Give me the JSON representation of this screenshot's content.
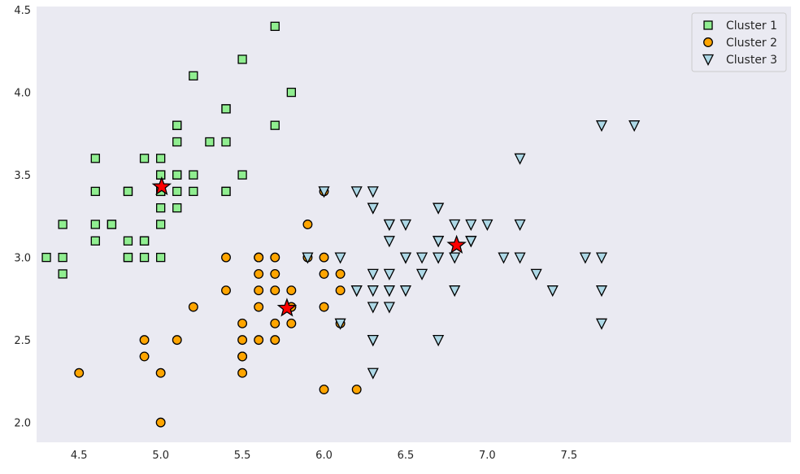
{
  "chart_data": {
    "type": "scatter",
    "xlim": [
      4.24,
      8.86
    ],
    "ylim": [
      1.88,
      4.52
    ],
    "grid": false,
    "background": "#eaeaf2",
    "legend_position": "top-right",
    "x_ticks": [
      4.5,
      5.0,
      5.5,
      6.0,
      6.5,
      7.0,
      7.5
    ],
    "y_ticks": [
      2.0,
      2.5,
      3.0,
      3.5,
      4.0,
      4.5
    ],
    "series": [
      {
        "name": "Cluster 1",
        "marker": "square",
        "color": "#90ee90",
        "points": [
          [
            5.1,
            3.5
          ],
          [
            4.9,
            3.0
          ],
          [
            4.7,
            3.2
          ],
          [
            4.6,
            3.1
          ],
          [
            5.0,
            3.6
          ],
          [
            5.4,
            3.9
          ],
          [
            4.6,
            3.4
          ],
          [
            5.0,
            3.4
          ],
          [
            4.4,
            2.9
          ],
          [
            4.9,
            3.1
          ],
          [
            5.4,
            3.7
          ],
          [
            4.8,
            3.4
          ],
          [
            4.8,
            3.0
          ],
          [
            4.3,
            3.0
          ],
          [
            5.8,
            4.0
          ],
          [
            5.7,
            4.4
          ],
          [
            5.4,
            3.9
          ],
          [
            5.1,
            3.5
          ],
          [
            5.7,
            3.8
          ],
          [
            5.1,
            3.8
          ],
          [
            5.4,
            3.4
          ],
          [
            5.1,
            3.7
          ],
          [
            4.6,
            3.6
          ],
          [
            5.1,
            3.3
          ],
          [
            4.8,
            3.4
          ],
          [
            5.0,
            3.0
          ],
          [
            5.0,
            3.4
          ],
          [
            5.2,
            3.5
          ],
          [
            5.2,
            3.4
          ],
          [
            4.7,
            3.2
          ],
          [
            4.8,
            3.1
          ],
          [
            5.4,
            3.4
          ],
          [
            5.2,
            4.1
          ],
          [
            5.5,
            4.2
          ],
          [
            4.9,
            3.1
          ],
          [
            5.0,
            3.2
          ],
          [
            5.5,
            3.5
          ],
          [
            4.9,
            3.6
          ],
          [
            4.4,
            3.0
          ],
          [
            5.1,
            3.4
          ],
          [
            5.0,
            3.5
          ],
          [
            4.4,
            3.2
          ],
          [
            5.0,
            3.5
          ],
          [
            5.1,
            3.8
          ],
          [
            4.8,
            3.0
          ],
          [
            5.1,
            3.8
          ],
          [
            4.6,
            3.2
          ],
          [
            5.3,
            3.7
          ],
          [
            5.0,
            3.3
          ]
        ]
      },
      {
        "name": "Cluster 2",
        "marker": "circle",
        "color": "#ffa500",
        "points": [
          [
            4.5,
            2.3
          ],
          [
            5.0,
            2.0
          ],
          [
            4.9,
            2.4
          ],
          [
            4.9,
            2.5
          ],
          [
            5.0,
            2.3
          ],
          [
            5.1,
            2.5
          ],
          [
            5.2,
            2.7
          ],
          [
            5.4,
            3.0
          ],
          [
            5.5,
            2.3
          ],
          [
            5.5,
            2.4
          ],
          [
            5.6,
            2.5
          ],
          [
            5.6,
            2.7
          ],
          [
            5.6,
            2.8
          ],
          [
            5.6,
            3.0
          ],
          [
            5.6,
            2.9
          ],
          [
            5.7,
            2.6
          ],
          [
            5.7,
            2.8
          ],
          [
            5.7,
            2.9
          ],
          [
            5.7,
            3.0
          ],
          [
            5.8,
            2.6
          ],
          [
            5.8,
            2.7
          ],
          [
            5.8,
            2.8
          ],
          [
            5.9,
            3.0
          ],
          [
            5.9,
            3.2
          ],
          [
            6.0,
            2.7
          ],
          [
            6.0,
            2.9
          ],
          [
            6.0,
            3.0
          ],
          [
            6.0,
            2.2
          ],
          [
            6.1,
            2.6
          ],
          [
            6.1,
            2.8
          ],
          [
            6.1,
            2.9
          ],
          [
            6.2,
            2.2
          ],
          [
            5.5,
            2.5
          ],
          [
            5.5,
            2.6
          ],
          [
            5.6,
            3.0
          ],
          [
            5.7,
            2.5
          ],
          [
            5.8,
            2.7
          ],
          [
            6.0,
            3.4
          ],
          [
            5.4,
            2.8
          ],
          [
            5.5,
            2.4
          ]
        ]
      },
      {
        "name": "Cluster 3",
        "marker": "triangle-down",
        "color": "#add8e6",
        "points": [
          [
            7.0,
            3.2
          ],
          [
            6.4,
            3.2
          ],
          [
            6.9,
            3.1
          ],
          [
            6.5,
            2.8
          ],
          [
            6.3,
            3.3
          ],
          [
            6.6,
            2.9
          ],
          [
            6.1,
            3.0
          ],
          [
            6.7,
            3.1
          ],
          [
            6.2,
            2.8
          ],
          [
            6.3,
            2.5
          ],
          [
            6.4,
            2.9
          ],
          [
            6.6,
            3.0
          ],
          [
            6.8,
            2.8
          ],
          [
            6.7,
            3.0
          ],
          [
            6.3,
            2.3
          ],
          [
            6.3,
            3.3
          ],
          [
            7.1,
            3.0
          ],
          [
            6.3,
            2.9
          ],
          [
            6.5,
            3.0
          ],
          [
            7.6,
            3.0
          ],
          [
            7.3,
            2.9
          ],
          [
            6.7,
            2.5
          ],
          [
            7.2,
            3.6
          ],
          [
            6.5,
            3.2
          ],
          [
            6.4,
            2.7
          ],
          [
            6.8,
            3.0
          ],
          [
            6.4,
            3.2
          ],
          [
            6.5,
            3.0
          ],
          [
            7.7,
            3.8
          ],
          [
            7.7,
            2.6
          ],
          [
            6.9,
            3.2
          ],
          [
            7.7,
            2.8
          ],
          [
            6.3,
            2.7
          ],
          [
            6.7,
            3.3
          ],
          [
            7.2,
            3.2
          ],
          [
            6.2,
            2.8
          ],
          [
            6.4,
            2.8
          ],
          [
            7.2,
            3.0
          ],
          [
            7.4,
            2.8
          ],
          [
            7.9,
            3.8
          ],
          [
            6.4,
            2.8
          ],
          [
            6.3,
            2.8
          ],
          [
            6.1,
            2.6
          ],
          [
            7.7,
            3.0
          ],
          [
            6.3,
            3.4
          ],
          [
            6.4,
            3.1
          ],
          [
            6.9,
            3.1
          ],
          [
            6.7,
            3.1
          ],
          [
            6.9,
            3.1
          ],
          [
            6.8,
            3.2
          ],
          [
            6.7,
            3.3
          ],
          [
            6.7,
            3.0
          ],
          [
            6.3,
            2.5
          ],
          [
            6.5,
            3.0
          ],
          [
            6.2,
            3.4
          ],
          [
            5.9,
            3.0
          ],
          [
            6.0,
            3.4
          ]
        ]
      }
    ],
    "centroids": {
      "marker": "star",
      "color": "#ff0000",
      "points": [
        [
          5.006,
          3.428
        ],
        [
          5.773,
          2.692
        ],
        [
          6.812,
          3.074
        ]
      ]
    }
  }
}
